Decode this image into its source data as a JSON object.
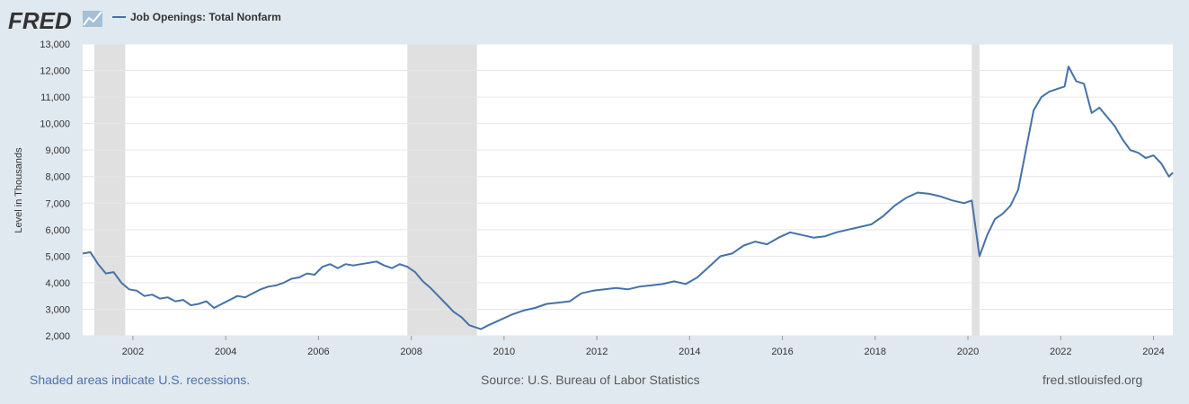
{
  "brand": {
    "logo_text": "FRED"
  },
  "legend": {
    "series_label": "Job Openings: Total Nonfarm",
    "color": "#4572a7"
  },
  "footer": {
    "recession_note": "Shaded areas indicate U.S. recessions.",
    "source": "Source: U.S. Bureau of Labor Statistics",
    "site": "fred.stlouisfed.org"
  },
  "colors": {
    "page_bg": "#e1e9f0",
    "plot_bg": "#ffffff",
    "grid": "#e6e6e6",
    "recession": "#e0e0e0",
    "line": "#4572a7"
  },
  "chart_data": {
    "type": "line",
    "title": "",
    "xlabel": "",
    "ylabel": "Level in Thousands",
    "xlim": [
      "2000-12",
      "2024-06"
    ],
    "ylim": [
      2000,
      13000
    ],
    "yticks": [
      2000,
      3000,
      4000,
      5000,
      6000,
      7000,
      8000,
      9000,
      10000,
      11000,
      12000,
      13000
    ],
    "ytick_labels": [
      "2,000",
      "3,000",
      "4,000",
      "5,000",
      "6,000",
      "7,000",
      "8,000",
      "9,000",
      "10,000",
      "11,000",
      "12,000",
      "13,000"
    ],
    "xticks": [
      "2002",
      "2004",
      "2006",
      "2008",
      "2010",
      "2012",
      "2014",
      "2016",
      "2018",
      "2020",
      "2022",
      "2024"
    ],
    "grid": true,
    "recessions": [
      {
        "start": "2001-03",
        "end": "2001-11"
      },
      {
        "start": "2007-12",
        "end": "2009-06"
      },
      {
        "start": "2020-02",
        "end": "2020-04"
      }
    ],
    "series": [
      {
        "name": "Job Openings: Total Nonfarm",
        "x": [
          "2000-12",
          "2001-02",
          "2001-04",
          "2001-06",
          "2001-08",
          "2001-10",
          "2001-12",
          "2002-02",
          "2002-04",
          "2002-06",
          "2002-08",
          "2002-10",
          "2002-12",
          "2003-02",
          "2003-04",
          "2003-06",
          "2003-08",
          "2003-10",
          "2003-12",
          "2004-02",
          "2004-04",
          "2004-06",
          "2004-08",
          "2004-10",
          "2004-12",
          "2005-02",
          "2005-04",
          "2005-06",
          "2005-08",
          "2005-10",
          "2005-12",
          "2006-02",
          "2006-04",
          "2006-06",
          "2006-08",
          "2006-10",
          "2006-12",
          "2007-02",
          "2007-04",
          "2007-06",
          "2007-08",
          "2007-10",
          "2007-12",
          "2008-02",
          "2008-04",
          "2008-06",
          "2008-08",
          "2008-10",
          "2008-12",
          "2009-02",
          "2009-04",
          "2009-07",
          "2009-09",
          "2009-12",
          "2010-03",
          "2010-06",
          "2010-09",
          "2010-12",
          "2011-03",
          "2011-06",
          "2011-09",
          "2011-12",
          "2012-03",
          "2012-06",
          "2012-09",
          "2012-12",
          "2013-03",
          "2013-06",
          "2013-09",
          "2013-12",
          "2014-03",
          "2014-06",
          "2014-09",
          "2014-12",
          "2015-03",
          "2015-06",
          "2015-09",
          "2015-12",
          "2016-03",
          "2016-06",
          "2016-09",
          "2016-12",
          "2017-03",
          "2017-06",
          "2017-09",
          "2017-12",
          "2018-03",
          "2018-06",
          "2018-09",
          "2018-12",
          "2019-03",
          "2019-06",
          "2019-09",
          "2019-12",
          "2020-02",
          "2020-04",
          "2020-06",
          "2020-08",
          "2020-10",
          "2020-12",
          "2021-02",
          "2021-04",
          "2021-06",
          "2021-08",
          "2021-10",
          "2021-12",
          "2022-02",
          "2022-03",
          "2022-05",
          "2022-07",
          "2022-09",
          "2022-11",
          "2023-01",
          "2023-03",
          "2023-05",
          "2023-07",
          "2023-09",
          "2023-11",
          "2024-01",
          "2024-03",
          "2024-05",
          "2024-06"
        ],
        "y": [
          5100,
          5150,
          4700,
          4350,
          4400,
          4000,
          3750,
          3700,
          3500,
          3550,
          3400,
          3450,
          3300,
          3350,
          3150,
          3200,
          3300,
          3050,
          3200,
          3350,
          3500,
          3450,
          3600,
          3750,
          3850,
          3900,
          4000,
          4150,
          4200,
          4350,
          4300,
          4600,
          4700,
          4550,
          4700,
          4650,
          4700,
          4750,
          4800,
          4650,
          4550,
          4700,
          4600,
          4400,
          4050,
          3800,
          3500,
          3200,
          2900,
          2700,
          2400,
          2250,
          2400,
          2600,
          2800,
          2950,
          3050,
          3200,
          3250,
          3300,
          3600,
          3700,
          3750,
          3800,
          3750,
          3850,
          3900,
          3950,
          4050,
          3950,
          4200,
          4600,
          5000,
          5100,
          5400,
          5550,
          5450,
          5700,
          5900,
          5800,
          5700,
          5750,
          5900,
          6000,
          6100,
          6200,
          6500,
          6900,
          7200,
          7400,
          7350,
          7250,
          7100,
          7000,
          7100,
          5000,
          5800,
          6400,
          6600,
          6900,
          7500,
          9000,
          10500,
          11000,
          11200,
          11300,
          11400,
          12150,
          11600,
          11500,
          10400,
          10600,
          10250,
          9900,
          9400,
          9000,
          8900,
          8700,
          8800,
          8500,
          8000,
          8150
        ]
      }
    ]
  }
}
